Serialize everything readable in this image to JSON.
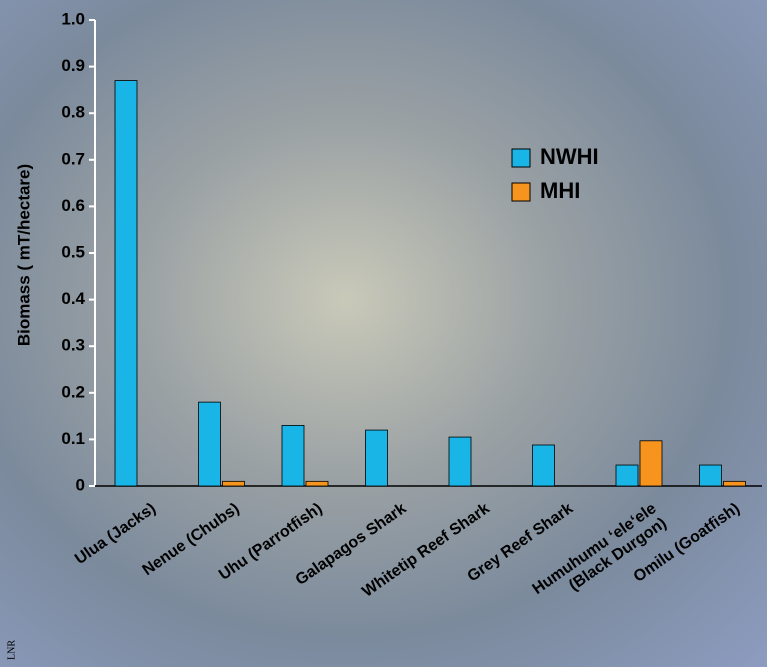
{
  "chart_data": {
    "type": "bar",
    "y_label": "Biomass ( mT/hectare)",
    "credit": "LNR",
    "categories": [
      "Ulua (Jacks)",
      "Nenue (Chubs)",
      "Uhu (Parrotfish)",
      "Galapagos Shark",
      "Whitetip Reef Shark",
      "Grey Reef Shark",
      "Humuhumu ‘ele‘ele\n(Black Durgon)",
      "Omilu (Goatfish)"
    ],
    "series": [
      {
        "name": "NWHI",
        "color": "#19b5e6",
        "values": [
          0.87,
          0.18,
          0.13,
          0.12,
          0.105,
          0.088,
          0.045,
          0.045
        ]
      },
      {
        "name": "MHI",
        "color": "#f7941d",
        "values": [
          0,
          0.01,
          0.01,
          0,
          0,
          0,
          0.097,
          0.01
        ]
      }
    ],
    "ylim": [
      0,
      1
    ],
    "yticks": [
      0,
      0.1,
      0.2,
      0.3,
      0.4,
      0.5,
      0.6,
      0.7,
      0.8,
      0.9,
      {
        "value": 1,
        "label": "1.0"
      }
    ],
    "legend": "upper right"
  }
}
